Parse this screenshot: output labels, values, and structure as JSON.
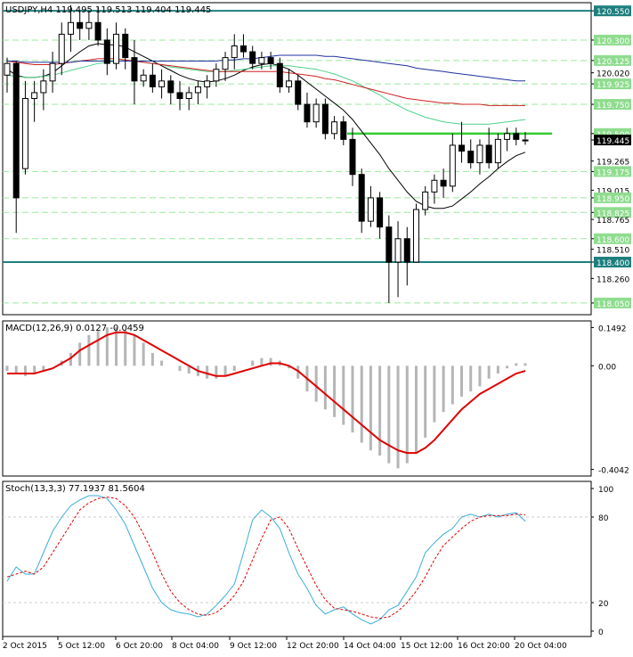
{
  "header": {
    "symbol_line": "USDJPY,H4  119.495 119.513 119.404 119.445",
    "macd_line": "MACD(12,26,9) 0.0127 -0.0459",
    "stoch_line": "Stoch(13,3,3) 77.1937 81.5604"
  },
  "colors": {
    "candle_bull": "#ffffff",
    "candle_bear": "#000000",
    "level_teal": "#1e7f7f",
    "level_green": "#33cc33",
    "level_dashed": "#9be89b",
    "label_bg_green": "#8fdc8f",
    "ma_black": "#000000",
    "ma_green": "#4fd08a",
    "ma_red": "#d02020",
    "ma_blue": "#2030a0",
    "macd_hist": "#b5b5b5",
    "macd_signal": "#e00000",
    "stoch_main": "#3aaed8",
    "stoch_signal": "#e00000"
  },
  "chart_data": [
    {
      "type": "candlestick",
      "panel": "price",
      "title": "USDJPY,H4",
      "ylim": [
        117.95,
        120.62
      ],
      "price_ticks": [
        "120.550",
        "120.300",
        "120.125",
        "120.020",
        "119.925",
        "119.750",
        "119.500",
        "119.445",
        "119.265",
        "119.175",
        "119.015",
        "118.950",
        "118.825",
        "118.765",
        "118.600",
        "118.510",
        "118.400",
        "118.260",
        "118.050"
      ],
      "levels": [
        {
          "value": 120.55,
          "style": "teal",
          "label": "120.550"
        },
        {
          "value": 120.3,
          "style": "dashed",
          "label": "120.300"
        },
        {
          "value": 120.125,
          "style": "dashed",
          "label": "120.125"
        },
        {
          "value": 119.925,
          "style": "dashed",
          "label": "119.925"
        },
        {
          "value": 119.75,
          "style": "dashed",
          "label": "119.750"
        },
        {
          "value": 119.5,
          "style": "green",
          "label": "119.500"
        },
        {
          "value": 119.175,
          "style": "dashed",
          "label": "119.175"
        },
        {
          "value": 118.95,
          "style": "dashed",
          "label": "118.950"
        },
        {
          "value": 118.825,
          "style": "dashed",
          "label": "118.825"
        },
        {
          "value": 118.6,
          "style": "dashed",
          "label": "118.600"
        },
        {
          "value": 118.4,
          "style": "teal",
          "label": "118.400"
        },
        {
          "value": 118.05,
          "style": "dashed",
          "label": "118.050"
        }
      ],
      "current_price": "119.445",
      "candles": [
        {
          "o": 120.0,
          "h": 120.15,
          "l": 119.85,
          "c": 120.1
        },
        {
          "o": 120.1,
          "h": 120.12,
          "l": 118.65,
          "c": 118.95
        },
        {
          "o": 119.2,
          "h": 119.95,
          "l": 119.15,
          "c": 119.8
        },
        {
          "o": 119.8,
          "h": 119.95,
          "l": 119.6,
          "c": 119.85
        },
        {
          "o": 119.85,
          "h": 120.05,
          "l": 119.7,
          "c": 119.95
        },
        {
          "o": 119.95,
          "h": 120.2,
          "l": 119.85,
          "c": 120.1
        },
        {
          "o": 120.1,
          "h": 120.45,
          "l": 120.0,
          "c": 120.35
        },
        {
          "o": 120.35,
          "h": 120.6,
          "l": 120.2,
          "c": 120.45
        },
        {
          "o": 120.45,
          "h": 120.55,
          "l": 120.3,
          "c": 120.4
        },
        {
          "o": 120.4,
          "h": 120.55,
          "l": 120.3,
          "c": 120.45
        },
        {
          "o": 120.45,
          "h": 120.58,
          "l": 120.25,
          "c": 120.3
        },
        {
          "o": 120.3,
          "h": 120.4,
          "l": 120.0,
          "c": 120.1
        },
        {
          "o": 120.1,
          "h": 120.45,
          "l": 120.05,
          "c": 120.35
        },
        {
          "o": 120.35,
          "h": 120.4,
          "l": 120.05,
          "c": 120.15
        },
        {
          "o": 120.15,
          "h": 120.3,
          "l": 119.75,
          "c": 119.95
        },
        {
          "o": 119.95,
          "h": 120.05,
          "l": 119.9,
          "c": 120.0
        },
        {
          "o": 120.0,
          "h": 120.1,
          "l": 119.85,
          "c": 119.9
        },
        {
          "o": 119.9,
          "h": 120.05,
          "l": 119.8,
          "c": 119.95
        },
        {
          "o": 119.95,
          "h": 120.0,
          "l": 119.75,
          "c": 119.85
        },
        {
          "o": 119.85,
          "h": 119.95,
          "l": 119.7,
          "c": 119.8
        },
        {
          "o": 119.8,
          "h": 119.9,
          "l": 119.7,
          "c": 119.85
        },
        {
          "o": 119.85,
          "h": 119.95,
          "l": 119.75,
          "c": 119.9
        },
        {
          "o": 119.9,
          "h": 120.0,
          "l": 119.8,
          "c": 119.95
        },
        {
          "o": 119.95,
          "h": 120.1,
          "l": 119.9,
          "c": 120.05
        },
        {
          "o": 120.05,
          "h": 120.2,
          "l": 119.95,
          "c": 120.15
        },
        {
          "o": 120.15,
          "h": 120.35,
          "l": 120.05,
          "c": 120.25
        },
        {
          "o": 120.25,
          "h": 120.35,
          "l": 120.15,
          "c": 120.2
        },
        {
          "o": 120.2,
          "h": 120.25,
          "l": 120.05,
          "c": 120.1
        },
        {
          "o": 120.1,
          "h": 120.2,
          "l": 120.05,
          "c": 120.15
        },
        {
          "o": 120.15,
          "h": 120.2,
          "l": 120.05,
          "c": 120.1
        },
        {
          "o": 120.1,
          "h": 120.15,
          "l": 119.85,
          "c": 119.9
        },
        {
          "o": 119.9,
          "h": 120.05,
          "l": 119.85,
          "c": 119.95
        },
        {
          "o": 119.95,
          "h": 120.0,
          "l": 119.7,
          "c": 119.75
        },
        {
          "o": 119.75,
          "h": 119.85,
          "l": 119.55,
          "c": 119.6
        },
        {
          "o": 119.6,
          "h": 119.8,
          "l": 119.55,
          "c": 119.75
        },
        {
          "o": 119.75,
          "h": 119.8,
          "l": 119.45,
          "c": 119.5
        },
        {
          "o": 119.5,
          "h": 119.65,
          "l": 119.45,
          "c": 119.6
        },
        {
          "o": 119.6,
          "h": 119.65,
          "l": 119.4,
          "c": 119.45
        },
        {
          "o": 119.45,
          "h": 119.55,
          "l": 119.05,
          "c": 119.15
        },
        {
          "o": 119.15,
          "h": 119.2,
          "l": 118.65,
          "c": 118.75
        },
        {
          "o": 118.75,
          "h": 119.05,
          "l": 118.7,
          "c": 118.95
        },
        {
          "o": 118.95,
          "h": 119.0,
          "l": 118.6,
          "c": 118.7
        },
        {
          "o": 118.7,
          "h": 118.8,
          "l": 118.05,
          "c": 118.4
        },
        {
          "o": 118.4,
          "h": 118.75,
          "l": 118.1,
          "c": 118.6
        },
        {
          "o": 118.6,
          "h": 118.7,
          "l": 118.2,
          "c": 118.4
        },
        {
          "o": 118.4,
          "h": 118.9,
          "l": 118.4,
          "c": 118.85
        },
        {
          "o": 118.85,
          "h": 119.05,
          "l": 118.8,
          "c": 119.0
        },
        {
          "o": 119.0,
          "h": 119.15,
          "l": 118.9,
          "c": 119.1
        },
        {
          "o": 119.1,
          "h": 119.2,
          "l": 118.95,
          "c": 119.05
        },
        {
          "o": 119.05,
          "h": 119.5,
          "l": 119.0,
          "c": 119.4
        },
        {
          "o": 119.4,
          "h": 119.6,
          "l": 119.25,
          "c": 119.35
        },
        {
          "o": 119.35,
          "h": 119.45,
          "l": 119.2,
          "c": 119.25
        },
        {
          "o": 119.25,
          "h": 119.45,
          "l": 119.15,
          "c": 119.4
        },
        {
          "o": 119.4,
          "h": 119.55,
          "l": 119.2,
          "c": 119.25
        },
        {
          "o": 119.25,
          "h": 119.5,
          "l": 119.2,
          "c": 119.45
        },
        {
          "o": 119.45,
          "h": 119.55,
          "l": 119.35,
          "c": 119.5
        },
        {
          "o": 119.5,
          "h": 119.55,
          "l": 119.4,
          "c": 119.45
        },
        {
          "o": 119.445,
          "h": 119.513,
          "l": 119.404,
          "c": 119.445
        }
      ],
      "moving_averages": [
        {
          "color_key": "ma_black",
          "values": [
            120.05,
            120.0,
            119.98,
            119.98,
            119.99,
            120.02,
            120.08,
            120.14,
            120.2,
            120.25,
            120.27,
            120.26,
            120.26,
            120.24,
            120.2,
            120.16,
            120.12,
            120.08,
            120.04,
            120.0,
            119.97,
            119.95,
            119.94,
            119.95,
            119.97,
            120.0,
            120.04,
            120.07,
            120.09,
            120.1,
            120.08,
            120.05,
            120.0,
            119.94,
            119.88,
            119.82,
            119.76,
            119.7,
            119.62,
            119.52,
            119.42,
            119.32,
            119.2,
            119.1,
            119.0,
            118.92,
            118.88,
            118.86,
            118.86,
            118.88,
            118.94,
            119.0,
            119.07,
            119.13,
            119.2,
            119.26,
            119.31,
            119.34
          ]
        },
        {
          "color_key": "ma_green",
          "values": [
            120.0,
            119.99,
            119.98,
            119.98,
            119.99,
            120.0,
            120.02,
            120.04,
            120.06,
            120.08,
            120.1,
            120.11,
            120.12,
            120.12,
            120.12,
            120.11,
            120.1,
            120.09,
            120.07,
            120.06,
            120.05,
            120.04,
            120.03,
            120.03,
            120.03,
            120.04,
            120.05,
            120.06,
            120.07,
            120.08,
            120.08,
            120.08,
            120.07,
            120.06,
            120.05,
            120.03,
            120.01,
            119.98,
            119.95,
            119.91,
            119.87,
            119.83,
            119.78,
            119.74,
            119.7,
            119.67,
            119.64,
            119.62,
            119.6,
            119.59,
            119.58,
            119.58,
            119.58,
            119.58,
            119.59,
            119.6,
            119.61,
            119.62
          ]
        },
        {
          "color_key": "ma_red",
          "values": [
            120.12,
            120.11,
            120.1,
            120.09,
            120.09,
            120.09,
            120.1,
            120.11,
            120.12,
            120.13,
            120.14,
            120.14,
            120.14,
            120.13,
            120.12,
            120.11,
            120.1,
            120.09,
            120.08,
            120.07,
            120.06,
            120.05,
            120.04,
            120.03,
            120.03,
            120.03,
            120.03,
            120.03,
            120.03,
            120.03,
            120.03,
            120.02,
            120.01,
            120.0,
            119.99,
            119.97,
            119.96,
            119.94,
            119.92,
            119.9,
            119.88,
            119.86,
            119.84,
            119.82,
            119.8,
            119.79,
            119.78,
            119.77,
            119.76,
            119.76,
            119.75,
            119.75,
            119.75,
            119.74,
            119.74,
            119.74,
            119.74,
            119.74
          ]
        },
        {
          "color_key": "ma_blue",
          "values": [
            120.12,
            120.12,
            120.11,
            120.11,
            120.11,
            120.11,
            120.11,
            120.11,
            120.12,
            120.12,
            120.12,
            120.12,
            120.12,
            120.12,
            120.12,
            120.12,
            120.12,
            120.12,
            120.12,
            120.12,
            120.12,
            120.12,
            120.12,
            120.12,
            120.13,
            120.13,
            120.14,
            120.14,
            120.15,
            120.16,
            120.17,
            120.17,
            120.17,
            120.17,
            120.17,
            120.16,
            120.16,
            120.15,
            120.14,
            120.13,
            120.12,
            120.11,
            120.1,
            120.09,
            120.08,
            120.06,
            120.05,
            120.04,
            120.03,
            120.02,
            120.01,
            120.0,
            119.99,
            119.98,
            119.97,
            119.96,
            119.95,
            119.95
          ]
        }
      ]
    },
    {
      "type": "bar",
      "panel": "macd",
      "title": "MACD(12,26,9) 0.0127 -0.0459",
      "ylim": [
        -0.43,
        0.175
      ],
      "ticks": [
        "0.1492",
        "0.00",
        "-0.4042"
      ],
      "histogram": [
        -0.02,
        -0.03,
        -0.04,
        -0.03,
        -0.02,
        0.0,
        0.02,
        0.05,
        0.09,
        0.12,
        0.14,
        0.15,
        0.15,
        0.14,
        0.12,
        0.09,
        0.05,
        0.02,
        0.0,
        -0.02,
        -0.03,
        -0.04,
        -0.05,
        -0.05,
        -0.04,
        -0.02,
        0.0,
        0.02,
        0.03,
        0.03,
        0.02,
        -0.01,
        -0.05,
        -0.1,
        -0.14,
        -0.17,
        -0.2,
        -0.23,
        -0.26,
        -0.3,
        -0.33,
        -0.35,
        -0.38,
        -0.4,
        -0.38,
        -0.34,
        -0.28,
        -0.22,
        -0.18,
        -0.15,
        -0.12,
        -0.1,
        -0.08,
        -0.05,
        -0.03,
        -0.01,
        0.01,
        0.01
      ],
      "signal": [
        -0.03,
        -0.03,
        -0.03,
        -0.03,
        -0.02,
        -0.01,
        0.01,
        0.03,
        0.06,
        0.08,
        0.1,
        0.12,
        0.13,
        0.13,
        0.12,
        0.1,
        0.08,
        0.06,
        0.04,
        0.02,
        0.0,
        -0.02,
        -0.03,
        -0.04,
        -0.04,
        -0.03,
        -0.02,
        -0.01,
        0.0,
        0.01,
        0.01,
        0.0,
        -0.02,
        -0.05,
        -0.08,
        -0.11,
        -0.14,
        -0.17,
        -0.2,
        -0.23,
        -0.26,
        -0.29,
        -0.31,
        -0.33,
        -0.34,
        -0.34,
        -0.32,
        -0.29,
        -0.25,
        -0.21,
        -0.17,
        -0.14,
        -0.11,
        -0.09,
        -0.07,
        -0.05,
        -0.03,
        -0.02
      ]
    },
    {
      "type": "line",
      "panel": "stochastic",
      "title": "Stoch(13,3,3) 77.1937 81.5604",
      "ylim": [
        0,
        100
      ],
      "ticks": [
        "100",
        "80",
        "20",
        "0"
      ],
      "series": [
        {
          "color_key": "stoch_main",
          "values": [
            35,
            45,
            40,
            40,
            55,
            70,
            80,
            88,
            92,
            95,
            95,
            93,
            85,
            75,
            60,
            45,
            30,
            20,
            15,
            13,
            12,
            10,
            12,
            18,
            25,
            33,
            55,
            78,
            85,
            80,
            72,
            55,
            40,
            30,
            18,
            12,
            15,
            17,
            12,
            8,
            5,
            8,
            15,
            18,
            28,
            38,
            55,
            62,
            68,
            72,
            80,
            82,
            80,
            82,
            80,
            82,
            83,
            77
          ]
        },
        {
          "color_key": "stoch_signal",
          "values": [
            38,
            40,
            42,
            40,
            45,
            55,
            65,
            75,
            85,
            90,
            93,
            94,
            93,
            88,
            80,
            68,
            55,
            40,
            28,
            20,
            15,
            12,
            11,
            13,
            18,
            25,
            35,
            50,
            65,
            78,
            80,
            72,
            58,
            45,
            32,
            22,
            16,
            15,
            14,
            12,
            10,
            9,
            10,
            14,
            20,
            28,
            38,
            50,
            60,
            66,
            72,
            77,
            80,
            81,
            81,
            81,
            82,
            81.56
          ]
        }
      ]
    }
  ],
  "time_axis": [
    "2 Oct 2015",
    "5 Oct 12:00",
    "6 Oct 20:00",
    "8 Oct 04:00",
    "9 Oct 12:00",
    "12 Oct 20:00",
    "14 Oct 04:00",
    "15 Oct 12:00",
    "16 Oct 20:00",
    "20 Oct 04:00"
  ]
}
